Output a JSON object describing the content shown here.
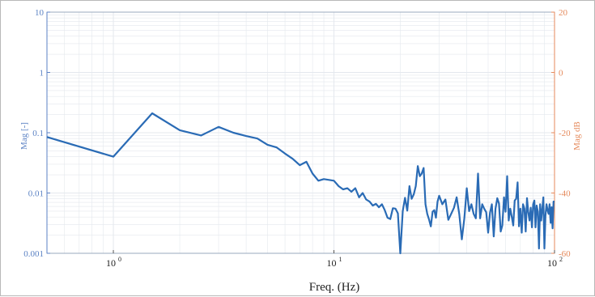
{
  "chart_data": {
    "type": "line",
    "xlabel": "Freq. (Hz)",
    "ylabel_left": "Mag [-]",
    "ylabel_right": "Mag dB",
    "x_scale": "log",
    "y_scale_left": "log",
    "xlim": [
      0.5,
      100
    ],
    "ylim_left": [
      0.001,
      10
    ],
    "ylim_right": [
      -60,
      20
    ],
    "x_ticks": [
      {
        "base": "10",
        "exp": "0",
        "value": 1
      },
      {
        "base": "10",
        "exp": "1",
        "value": 10
      },
      {
        "base": "10",
        "exp": "2",
        "value": 100
      }
    ],
    "y_ticks_left": [
      {
        "label": "0.001",
        "value": 0.001
      },
      {
        "label": "0.01",
        "value": 0.01
      },
      {
        "label": "0.1",
        "value": 0.1
      },
      {
        "label": "1",
        "value": 1
      },
      {
        "label": "10",
        "value": 10
      }
    ],
    "y_ticks_right": [
      {
        "label": "-60",
        "value": -60
      },
      {
        "label": "-40",
        "value": -40
      },
      {
        "label": "-20",
        "value": -20
      },
      {
        "label": "0",
        "value": 0
      },
      {
        "label": "20",
        "value": 20
      }
    ],
    "grid": true,
    "colors": {
      "series": "#2a6bb5",
      "left_axis": "#5b82c4",
      "right_axis": "#e58a5c",
      "grid": "#e4e8ee"
    },
    "series": [
      {
        "x": [
          0.5,
          1.0,
          1.5,
          2.0,
          2.5,
          3.0,
          3.5,
          4.0,
          4.5,
          5.0,
          5.5,
          6.0,
          6.5,
          7.0,
          7.5,
          8.0,
          8.5,
          9.0,
          9.5,
          10.0,
          10.5,
          11.0,
          11.5,
          12.0,
          12.5,
          13.0,
          13.5,
          14.0,
          14.5,
          15.0,
          15.5,
          16.0,
          16.5,
          17.0,
          17.5,
          18.0,
          18.5,
          19.0,
          19.5,
          20.0,
          20.5,
          21.0,
          21.5,
          22.0,
          22.5,
          23.0,
          23.5,
          24.0,
          24.5,
          25.0,
          25.5,
          26.0,
          26.5,
          27.0,
          27.5,
          28.0,
          28.5,
          29.0,
          29.5,
          30.0,
          31.0,
          32.0,
          33.0,
          34.0,
          35.0,
          36.0,
          37.0,
          38.0,
          39.0,
          40.0,
          41.0,
          42.0,
          43.0,
          44.0,
          45.0,
          46.0,
          47.0,
          48.0,
          49.0,
          50.0,
          51.0,
          52.0,
          53.0,
          54.0,
          55.0,
          56.0,
          57.0,
          58.0,
          59.0,
          60.0,
          61.0,
          62.0,
          63.0,
          64.0,
          65.0,
          66.0,
          67.0,
          68.0,
          69.0,
          70.0,
          71.0,
          72.0,
          73.0,
          74.0,
          75.0,
          76.0,
          77.0,
          78.0,
          79.0,
          80.0,
          81.0,
          82.0,
          83.0,
          84.0,
          85.0,
          86.0,
          87.0,
          88.0,
          89.0,
          90.0,
          91.0,
          92.0,
          93.0,
          94.0,
          95.0,
          96.0,
          97.0,
          98.0,
          99.0,
          100.0
        ],
        "y": [
          0.085,
          0.04,
          0.21,
          0.11,
          0.09,
          0.125,
          0.1,
          0.088,
          0.08,
          0.063,
          0.057,
          0.045,
          0.037,
          0.029,
          0.033,
          0.021,
          0.016,
          0.017,
          0.0165,
          0.016,
          0.013,
          0.0115,
          0.012,
          0.0105,
          0.012,
          0.0085,
          0.01,
          0.0078,
          0.0072,
          0.0062,
          0.0066,
          0.0058,
          0.0065,
          0.0052,
          0.0039,
          0.0037,
          0.0056,
          0.0055,
          0.0046,
          0.0007,
          0.005,
          0.0083,
          0.0051,
          0.013,
          0.008,
          0.0095,
          0.013,
          0.028,
          0.019,
          0.021,
          0.026,
          0.0065,
          0.0045,
          0.0036,
          0.0028,
          0.0049,
          0.0052,
          0.0039,
          0.0072,
          0.009,
          0.0065,
          0.0078,
          0.0036,
          0.0045,
          0.0057,
          0.0085,
          0.0045,
          0.0017,
          0.0038,
          0.012,
          0.005,
          0.0065,
          0.0045,
          0.0038,
          0.021,
          0.0038,
          0.0065,
          0.0055,
          0.0048,
          0.0022,
          0.0047,
          0.0065,
          0.0019,
          0.0055,
          0.0082,
          0.0067,
          0.0023,
          0.0029,
          0.0085,
          0.0049,
          0.019,
          0.0035,
          0.0055,
          0.004,
          0.0029,
          0.0075,
          0.008,
          0.015,
          0.0028,
          0.0055,
          0.0022,
          0.0065,
          0.0055,
          0.0023,
          0.0082,
          0.0049,
          0.0035,
          0.0057,
          0.0027,
          0.0065,
          0.0075,
          0.0027,
          0.0062,
          0.0049,
          0.0012,
          0.0065,
          0.0035,
          0.0055,
          0.0085,
          0.0012,
          0.0042,
          0.0065,
          0.0052,
          0.0045,
          0.0065,
          0.0032,
          0.0058,
          0.0026,
          0.0072,
          0.0072
        ]
      }
    ]
  }
}
